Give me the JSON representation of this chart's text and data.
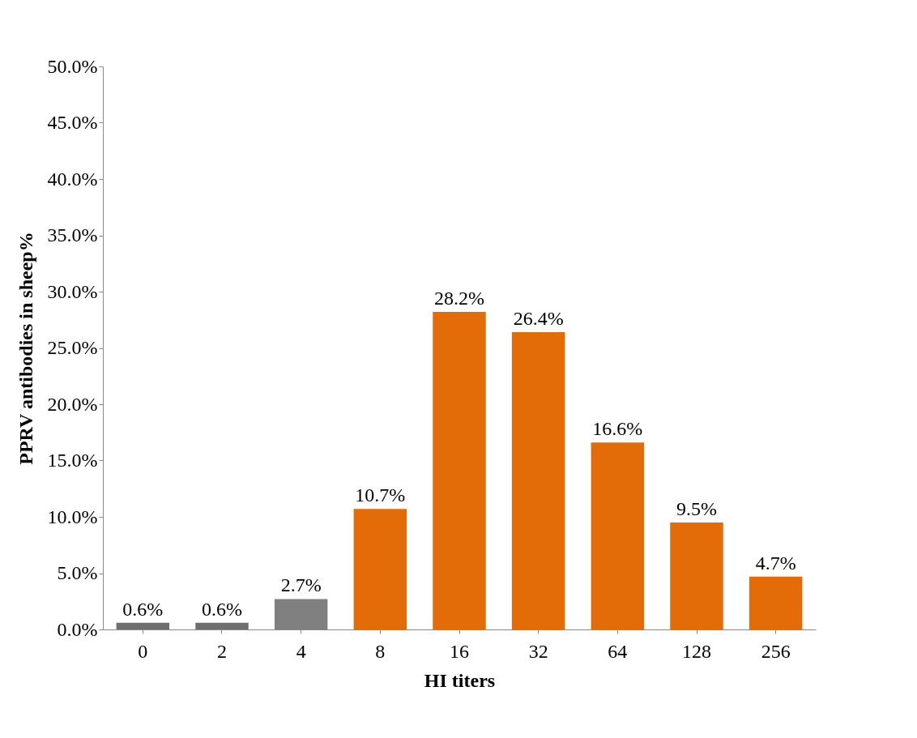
{
  "chart_data": {
    "type": "bar",
    "xlabel": "HI titers",
    "ylabel": "PPRV antibodies in sheep%",
    "categories": [
      "0",
      "2",
      "4",
      "8",
      "16",
      "32",
      "64",
      "128",
      "256"
    ],
    "values": [
      0.6,
      0.6,
      2.7,
      10.7,
      28.2,
      26.4,
      16.6,
      9.5,
      4.7
    ],
    "colors": [
      "#6f6f6f",
      "#6f6f6f",
      "#808080",
      "#e36c09",
      "#e36c09",
      "#e36c09",
      "#e36c09",
      "#e36c09",
      "#e36c09"
    ],
    "value_labels": [
      "0.6%",
      "0.6%",
      "2.7%",
      "10.7%",
      "28.2%",
      "26.4%",
      "16.6%",
      "9.5%",
      "4.7%"
    ],
    "ylim": [
      0,
      50
    ],
    "yticks": [
      {
        "value": 0,
        "label": "0.0%"
      },
      {
        "value": 5,
        "label": "5.0%"
      },
      {
        "value": 10,
        "label": "10.0%"
      },
      {
        "value": 15,
        "label": "15.0%"
      },
      {
        "value": 20,
        "label": "20.0%"
      },
      {
        "value": 25,
        "label": "25.0%"
      },
      {
        "value": 30,
        "label": "30.0%"
      },
      {
        "value": 35,
        "label": "35.0%"
      },
      {
        "value": 40,
        "label": "40.0%"
      },
      {
        "value": 45,
        "label": "45.0%"
      },
      {
        "value": 50,
        "label": "50.0%"
      }
    ],
    "grid": false
  }
}
